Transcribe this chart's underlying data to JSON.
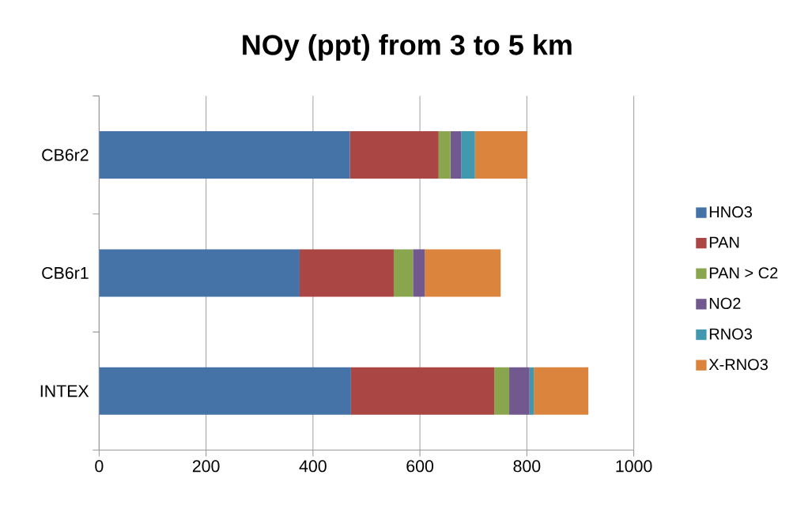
{
  "chart_data": {
    "type": "bar",
    "title": "NOy (ppt) from 3 to 5 km",
    "orientation": "horizontal",
    "stacked": true,
    "categories": [
      "CB6r2",
      "CB6r1",
      "INTEX"
    ],
    "series": [
      {
        "name": "HNO3",
        "color": "#4572a7",
        "values": [
          469,
          375,
          471
        ]
      },
      {
        "name": "PAN",
        "color": "#aa4643",
        "values": [
          166,
          176,
          268
        ]
      },
      {
        "name": "PAN > C2",
        "color": "#89a54e",
        "values": [
          22,
          36,
          28
        ]
      },
      {
        "name": "NO2",
        "color": "#71588f",
        "values": [
          20,
          22,
          38
        ]
      },
      {
        "name": "RNO3",
        "color": "#4198af",
        "values": [
          26,
          0,
          8
        ]
      },
      {
        "name": "X-RNO3",
        "color": "#db843d",
        "values": [
          98,
          142,
          102
        ]
      }
    ],
    "xlim": [
      0,
      1000
    ],
    "xticks": [
      0,
      200,
      400,
      600,
      800,
      1000
    ],
    "grid": "x",
    "legend": "right"
  }
}
